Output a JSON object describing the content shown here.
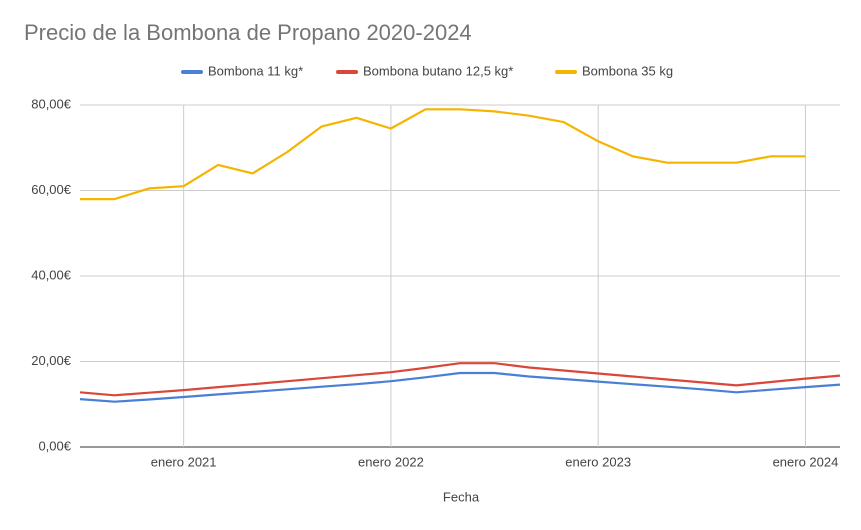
{
  "chart_data": {
    "type": "line",
    "title": "Precio de la Bombona de Propano 2020-2024",
    "x_label": "Fecha",
    "x": [
      "2020-07",
      "2020-09",
      "2020-11",
      "2021-01",
      "2021-03",
      "2021-05",
      "2021-07",
      "2021-09",
      "2021-11",
      "2022-01",
      "2022-03",
      "2022-05",
      "2022-07",
      "2022-09",
      "2022-11",
      "2023-01",
      "2023-03",
      "2023-05",
      "2023-07",
      "2023-09",
      "2023-11",
      "2024-01",
      "2024-03"
    ],
    "series": [
      {
        "name": "Bombona 11 kg*",
        "color": "#4a7fd6",
        "values": [
          11.2,
          10.6,
          11.1,
          11.7,
          12.3,
          12.9,
          13.5,
          14.1,
          14.7,
          15.4,
          16.3,
          17.3,
          17.3,
          16.5,
          15.9,
          15.3,
          14.7,
          14.1,
          13.5,
          12.8,
          13.4,
          14.0,
          14.6
        ]
      },
      {
        "name": "Bombona butano 12,5 kg*",
        "color": "#d9473a",
        "values": [
          12.8,
          12.1,
          12.7,
          13.3,
          14.0,
          14.7,
          15.4,
          16.1,
          16.8,
          17.5,
          18.5,
          19.6,
          19.6,
          18.6,
          17.9,
          17.2,
          16.5,
          15.8,
          15.1,
          14.4,
          15.2,
          16.0,
          16.7
        ]
      },
      {
        "name": "Bombona 35 kg",
        "color": "#f4b400",
        "values": [
          58,
          58,
          60.5,
          61,
          66,
          64,
          69,
          75,
          77,
          74.5,
          79,
          79,
          78.5,
          77.5,
          76,
          71.5,
          68,
          66.5,
          66.5,
          66.5,
          68,
          68,
          null
        ]
      }
    ],
    "xlim": [
      "2020-07",
      "2024-03"
    ],
    "xticks": [
      {
        "value": "2021-01",
        "label": "enero 2021"
      },
      {
        "value": "2022-01",
        "label": "enero 2022"
      },
      {
        "value": "2023-01",
        "label": "enero 2023"
      },
      {
        "value": "2024-01",
        "label": "enero 2024"
      }
    ],
    "ylim": [
      0,
      80
    ],
    "yticks": [
      {
        "value": 0,
        "label": "0,00€"
      },
      {
        "value": 20,
        "label": "20,00€"
      },
      {
        "value": 40,
        "label": "40,00€"
      },
      {
        "value": 60,
        "label": "60,00€"
      },
      {
        "value": 80,
        "label": "80,00€"
      }
    ],
    "grid": true,
    "legend": "top"
  }
}
